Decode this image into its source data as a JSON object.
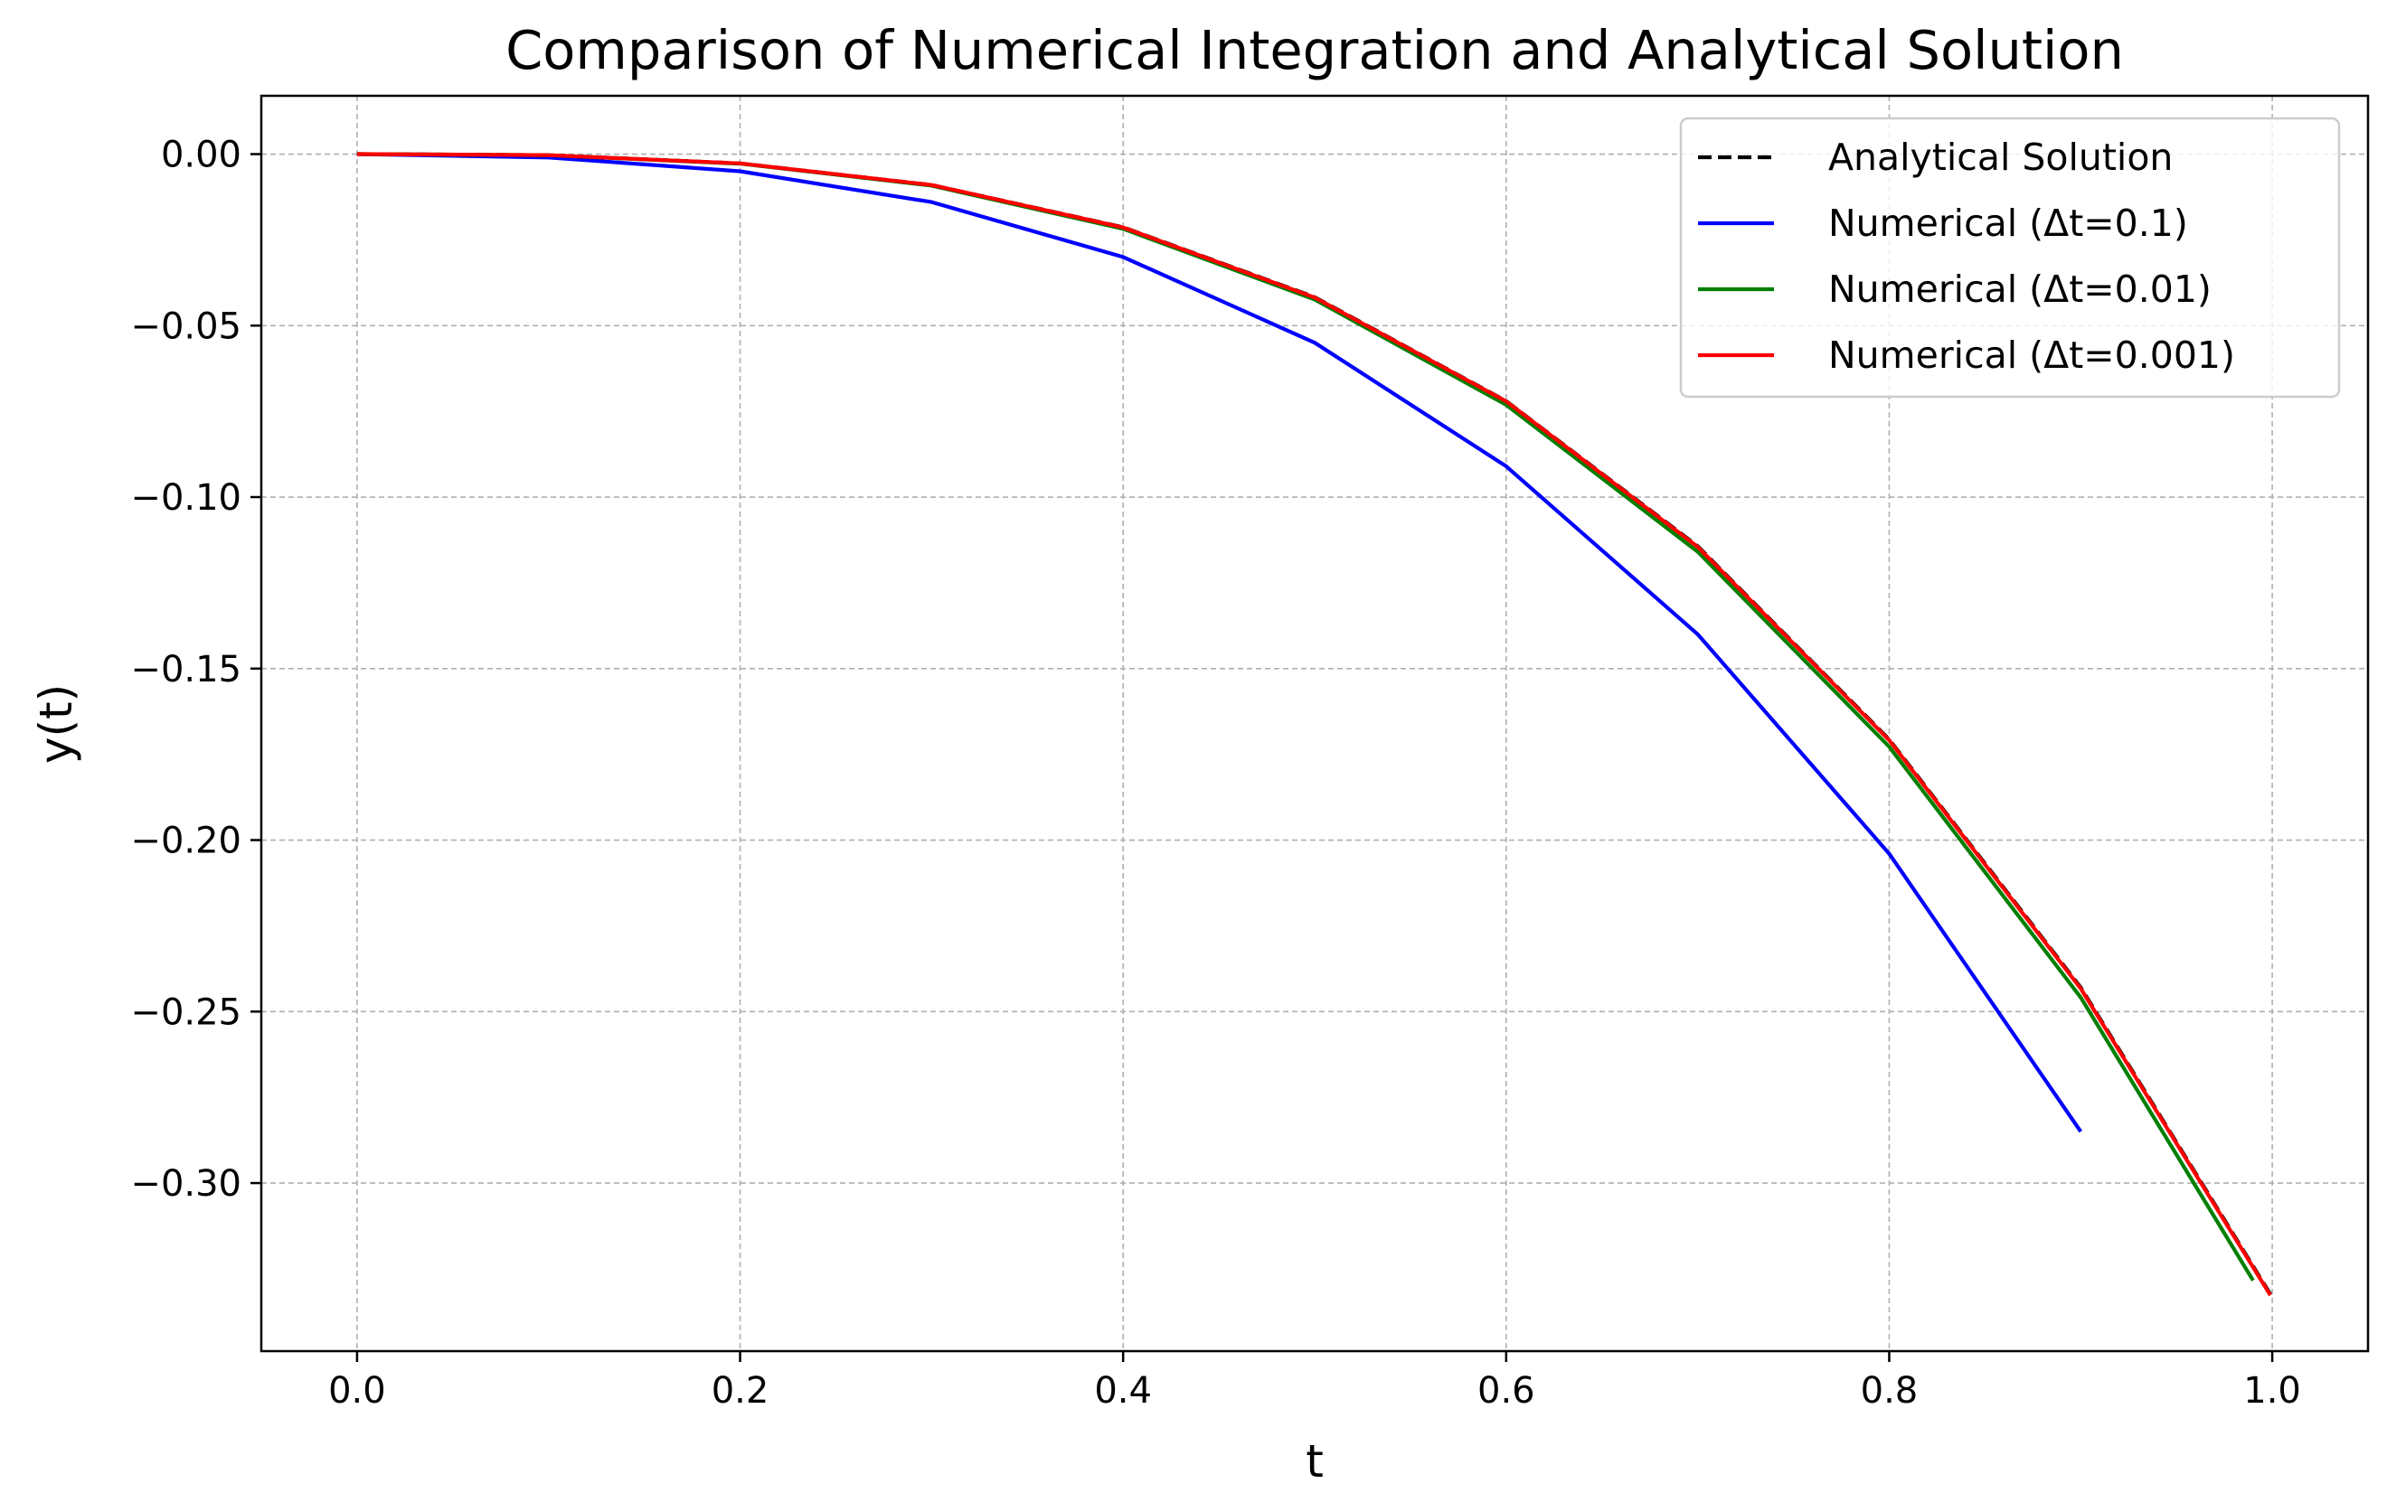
{
  "chart_data": {
    "type": "line",
    "title": "Comparison of Numerical Integration and Analytical Solution",
    "xlabel": "t",
    "ylabel": "y(t)",
    "xlim": [
      -0.05,
      1.05
    ],
    "ylim": [
      -0.349,
      0.017
    ],
    "grid": true,
    "legend_position": "top-right",
    "x_ticks": [
      {
        "value": 0.0,
        "label": "0.0"
      },
      {
        "value": 0.2,
        "label": "0.2"
      },
      {
        "value": 0.4,
        "label": "0.4"
      },
      {
        "value": 0.6,
        "label": "0.6"
      },
      {
        "value": 0.8,
        "label": "0.8"
      },
      {
        "value": 1.0,
        "label": "1.0"
      }
    ],
    "y_ticks": [
      {
        "value": 0.0,
        "label": "0.00"
      },
      {
        "value": -0.05,
        "label": "−0.05"
      },
      {
        "value": -0.1,
        "label": "−0.10"
      },
      {
        "value": -0.15,
        "label": "−0.15"
      },
      {
        "value": -0.2,
        "label": "−0.20"
      },
      {
        "value": -0.25,
        "label": "−0.25"
      },
      {
        "value": -0.3,
        "label": "−0.30"
      }
    ],
    "series": [
      {
        "name": "Analytical Solution",
        "color": "#000000",
        "dash": "dashed",
        "x": [
          0.0,
          0.1,
          0.2,
          0.3,
          0.4,
          0.5,
          0.6,
          0.7,
          0.8,
          0.9,
          1.0
        ],
        "y": [
          0.0,
          -0.0003,
          -0.0027,
          -0.009,
          -0.0213,
          -0.0417,
          -0.072,
          -0.1143,
          -0.1707,
          -0.243,
          -0.3333
        ]
      },
      {
        "name": "Numerical (Δt=0.1)",
        "color": "#0000ff",
        "dash": "solid",
        "x": [
          0.0,
          0.1,
          0.2,
          0.3,
          0.4,
          0.5,
          0.6,
          0.7,
          0.8,
          0.9
        ],
        "y": [
          0.0,
          -0.001,
          -0.005,
          -0.014,
          -0.03,
          -0.055,
          -0.091,
          -0.14,
          -0.204,
          -0.285
        ]
      },
      {
        "name": "Numerical (Δt=0.01)",
        "color": "#007f00",
        "dash": "solid",
        "x": [
          0.0,
          0.1,
          0.2,
          0.3,
          0.4,
          0.5,
          0.6,
          0.7,
          0.8,
          0.9,
          0.99
        ],
        "y": [
          0.0,
          -0.0003,
          -0.0028,
          -0.0092,
          -0.0218,
          -0.0424,
          -0.0731,
          -0.1159,
          -0.1728,
          -0.2459,
          -0.3284
        ]
      },
      {
        "name": "Numerical (Δt=0.001)",
        "color": "#ff0000",
        "dash": "solid",
        "x": [
          0.0,
          0.1,
          0.2,
          0.3,
          0.4,
          0.5,
          0.6,
          0.7,
          0.8,
          0.9,
          0.999
        ],
        "y": [
          0.0,
          -0.0003,
          -0.0027,
          -0.009,
          -0.0214,
          -0.0418,
          -0.0721,
          -0.1145,
          -0.1709,
          -0.2433,
          -0.3327
        ]
      }
    ]
  }
}
